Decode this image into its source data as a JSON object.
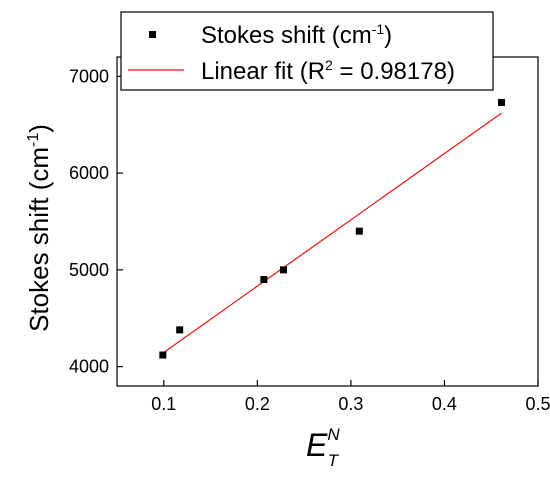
{
  "chart_data": {
    "type": "scatter",
    "xlim": [
      0.05,
      0.5
    ],
    "ylim": [
      3800,
      7200
    ],
    "x_ticks": [
      "0.1",
      "0.2",
      "0.3",
      "0.4",
      "0.5"
    ],
    "y_ticks": [
      "4000",
      "5000",
      "6000",
      "7000"
    ],
    "xlabel": {
      "base": "E",
      "sup": "N",
      "sub": "T"
    },
    "ylabel": {
      "main": "Stokes shift (cm",
      "sup": "-1",
      "end": ")"
    },
    "legend_position": "top-center",
    "series": [
      {
        "name": "Stokes shift (cm-1)",
        "legend": {
          "main": "Stokes shift (cm",
          "sup": "-1",
          "end": ")"
        },
        "marker": "square",
        "color": "#000000",
        "x": [
          0.099,
          0.117,
          0.207,
          0.228,
          0.309,
          0.461
        ],
        "y": [
          4120,
          4380,
          4900,
          5000,
          5400,
          6730
        ]
      },
      {
        "name": "Linear fit (R2 = 0.98178)",
        "legend": {
          "main": "Linear fit (R",
          "sup": "2",
          "end": " = 0.98178)"
        },
        "line": "solid",
        "color": "#e8130e",
        "x": [
          0.099,
          0.461
        ],
        "y": [
          4140,
          6620
        ]
      }
    ]
  }
}
